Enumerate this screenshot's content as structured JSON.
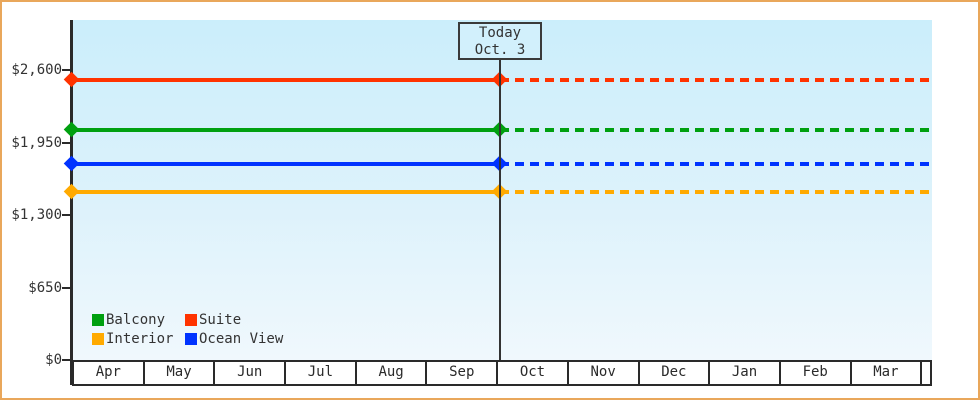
{
  "frame": {
    "border_color": "#e9a75b",
    "background": "#ffffff"
  },
  "chart_data": {
    "type": "line",
    "title": "",
    "categories": [
      "Apr",
      "May",
      "Jun",
      "Jul",
      "Aug",
      "Sep",
      "Oct",
      "Nov",
      "Dec",
      "Jan",
      "Feb",
      "Mar"
    ],
    "ylim": [
      0,
      2600
    ],
    "yticks": [
      {
        "label": "$0",
        "value": 0
      },
      {
        "label": "$650",
        "value": 650
      },
      {
        "label": "$1,300",
        "value": 1300
      },
      {
        "label": "$1,950",
        "value": 1950
      },
      {
        "label": "$2,600",
        "value": 2600
      }
    ],
    "series": [
      {
        "name": "Suite",
        "color": "#ff3300",
        "value": 2510,
        "solid_until": "Oct",
        "dashed_after": true
      },
      {
        "name": "Balcony",
        "color": "#00a010",
        "value": 2060,
        "solid_until": "Oct",
        "dashed_after": true
      },
      {
        "name": "Ocean View",
        "color": "#0033ff",
        "value": 1755,
        "solid_until": "Oct",
        "dashed_after": true
      },
      {
        "name": "Interior",
        "color": "#ffaa00",
        "value": 1510,
        "solid_until": "Oct",
        "dashed_after": true
      }
    ],
    "today_annotation": {
      "line1": "Today",
      "line2": "Oct. 3"
    },
    "legend_position": "bottom-left-inside",
    "grid": false
  },
  "legend": {
    "items": [
      {
        "label": "Balcony",
        "color": "#00a010"
      },
      {
        "label": "Suite",
        "color": "#ff3300"
      },
      {
        "label": "Interior",
        "color": "#ffaa00"
      },
      {
        "label": "Ocean View",
        "color": "#0033ff"
      }
    ]
  }
}
